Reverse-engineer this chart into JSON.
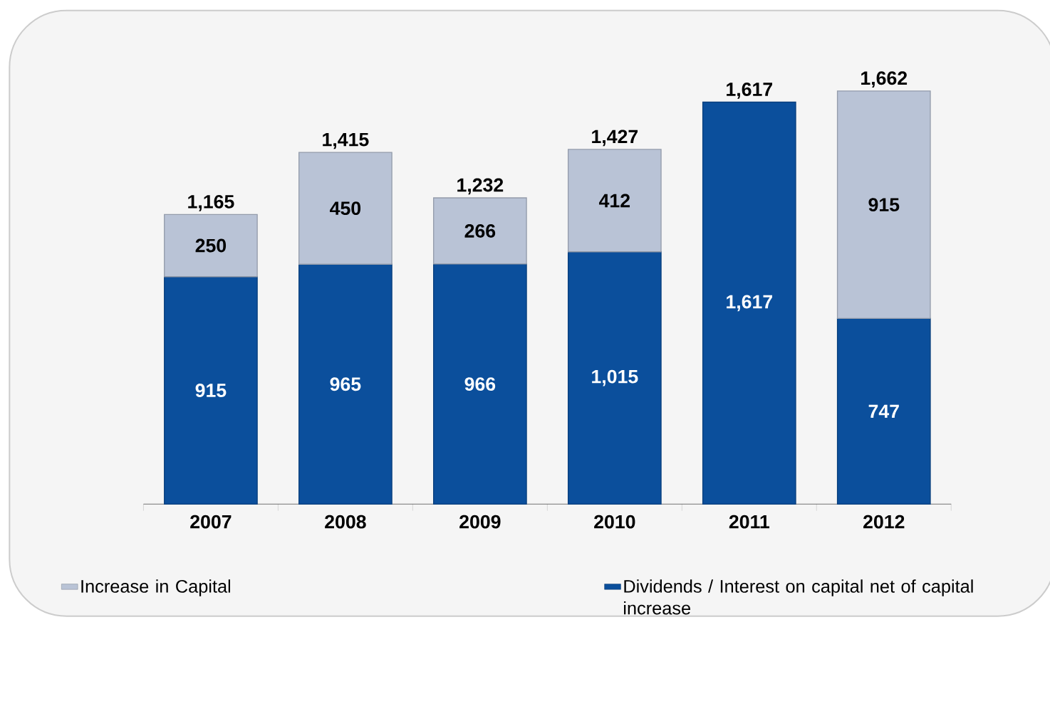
{
  "chart_data": {
    "type": "bar",
    "stacked": true,
    "categories": [
      "2007",
      "2008",
      "2009",
      "2010",
      "2011",
      "2012"
    ],
    "series": [
      {
        "name": "Dividends / Interest on capital net of capital increase",
        "color": "#0b4f9c",
        "values": [
          915,
          965,
          966,
          1015,
          1617,
          747
        ],
        "value_labels": [
          "915",
          "965",
          "966",
          "1,015",
          "1,617",
          "747"
        ]
      },
      {
        "name": "Increase in Capital",
        "color": "#b9c3d6",
        "values": [
          250,
          450,
          266,
          412,
          null,
          915
        ],
        "value_labels": [
          "250",
          "450",
          "266",
          "412",
          null,
          "915"
        ]
      }
    ],
    "totals": [
      "1,165",
      "1,415",
      "1,232",
      "1,427",
      "1,617",
      "1,662"
    ],
    "legend": "bottom"
  }
}
